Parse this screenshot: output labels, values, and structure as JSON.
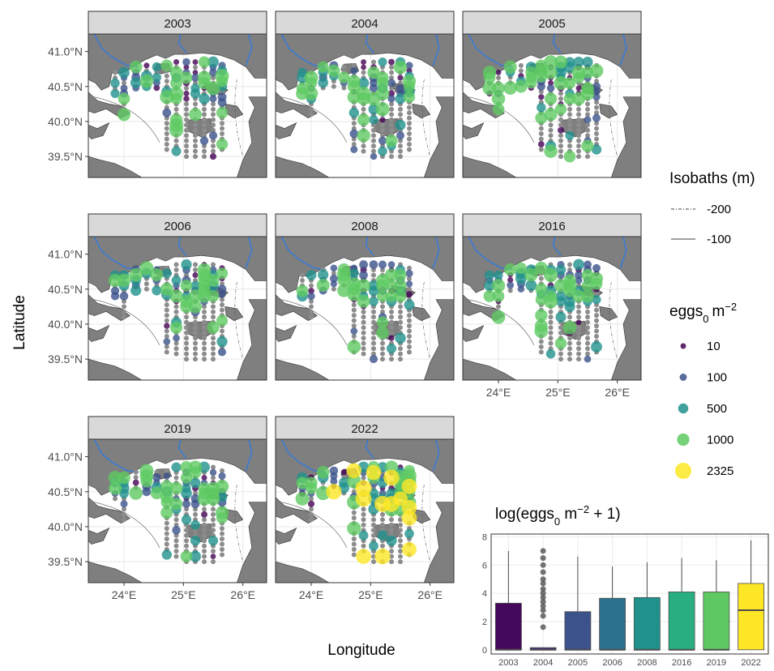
{
  "chart_data": [
    {
      "type": "scatter",
      "facets": [
        "2003",
        "2004",
        "2005",
        "2006",
        "2008",
        "2016",
        "2019",
        "2022"
      ],
      "xlabel": "Longitude",
      "ylabel": "Latitude",
      "xlim": [
        23.4,
        26.4
      ],
      "ylim": [
        39.2,
        41.25
      ],
      "x_ticks": [
        24,
        25,
        26
      ],
      "x_tick_labels": [
        "24°E",
        "25°E",
        "26°E"
      ],
      "y_ticks": [
        39.5,
        40.0,
        40.5,
        41.0
      ],
      "y_tick_labels": [
        "39.5°N",
        "40.0°N",
        "40.5°N",
        "41.0°N"
      ],
      "size_color_legend": {
        "title_base": "eggs",
        "title_sub": "0",
        "title_unit": "m",
        "title_sup": "−2",
        "values": [
          10,
          100,
          500,
          1000,
          2325
        ],
        "labels": [
          "10",
          "100",
          "500",
          "1000",
          "2325"
        ],
        "colors": [
          "#440154",
          "#3b528b",
          "#21918c",
          "#5ec962",
          "#fde725"
        ]
      },
      "isobath_legend": {
        "title": "Isobaths (m)",
        "items": [
          {
            "label": "-200",
            "style": "dash-dot"
          },
          {
            "label": "-100",
            "style": "solid"
          }
        ]
      },
      "land_color": "#7f7f7f",
      "river_color": "#3a7bd5",
      "zero_station_color": "#8c8c8c"
    },
    {
      "type": "box",
      "title_base": "log(eggs",
      "title_sub": "0",
      "title_unit": " m",
      "title_sup": "−2",
      "title_end": " + 1)",
      "categories": [
        "2003",
        "2004",
        "2005",
        "2006",
        "2008",
        "2016",
        "2019",
        "2022"
      ],
      "ylim": [
        -0.3,
        8.2
      ],
      "y_ticks": [
        0,
        2,
        4,
        6,
        8
      ],
      "y_tick_labels": [
        "0",
        "2",
        "4",
        "6",
        "8"
      ],
      "boxes": [
        {
          "min": 0,
          "q1": 0,
          "median": 0,
          "q3": 3.3,
          "max": 7.0,
          "color": "#46085c",
          "outliers": []
        },
        {
          "min": 0,
          "q1": 0,
          "median": 0,
          "q3": 0.15,
          "max": 0.15,
          "color": "#472c7a",
          "outliers": [
            1.6,
            2.4,
            2.8,
            3.1,
            3.4,
            3.7,
            4.0,
            4.3,
            4.7,
            5.0,
            5.5,
            6.0,
            6.5,
            7.0
          ]
        },
        {
          "min": 0,
          "q1": 0,
          "median": 0,
          "q3": 2.7,
          "max": 6.6,
          "color": "#3b528b",
          "outliers": []
        },
        {
          "min": 0,
          "q1": 0,
          "median": 0,
          "q3": 3.65,
          "max": 5.9,
          "color": "#2c728e",
          "outliers": []
        },
        {
          "min": 0,
          "q1": 0,
          "median": 0,
          "q3": 3.7,
          "max": 6.2,
          "color": "#21918c",
          "outliers": []
        },
        {
          "min": 0,
          "q1": 0,
          "median": 0,
          "q3": 4.1,
          "max": 6.5,
          "color": "#28ae80",
          "outliers": []
        },
        {
          "min": 0,
          "q1": 0,
          "median": 0,
          "q3": 4.1,
          "max": 6.35,
          "color": "#5ec962",
          "outliers": []
        },
        {
          "min": 0,
          "q1": 0,
          "median": 2.8,
          "q3": 4.7,
          "max": 7.75,
          "color": "#fde725",
          "outliers": []
        }
      ]
    }
  ]
}
